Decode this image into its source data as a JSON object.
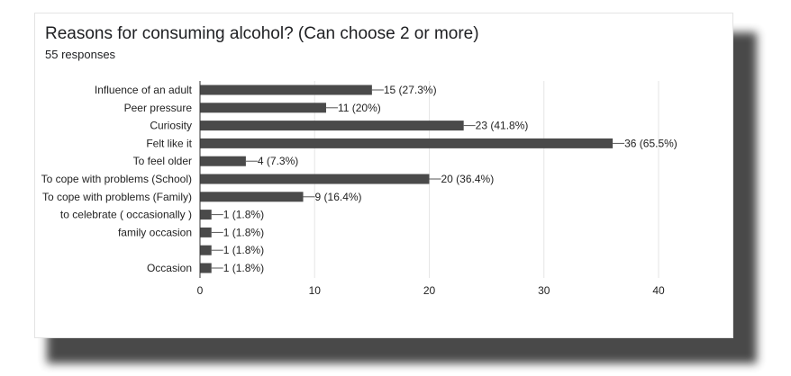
{
  "chart_data": {
    "type": "bar",
    "orientation": "horizontal",
    "title": "Reasons for consuming alcohol? (Can choose 2 or more)",
    "subtitle": "55 responses",
    "categories": [
      "Influence of an adult",
      "Peer pressure",
      "Curiosity",
      "Felt like it",
      "To feel older",
      "To cope with problems (School)",
      "To cope with problems (Family)",
      "to celebrate ( occasionally )",
      "family occasion",
      "",
      "Occasion"
    ],
    "values": [
      15,
      11,
      23,
      36,
      4,
      20,
      9,
      1,
      1,
      1,
      1
    ],
    "data_labels": [
      "15 (27.3%)",
      "11 (20%)",
      "23 (41.8%)",
      "36 (65.5%)",
      "4 (7.3%)",
      "20 (36.4%)",
      "9 (16.4%)",
      "1 (1.8%)",
      "1 (1.8%)",
      "1 (1.8%)",
      "1 (1.8%)"
    ],
    "xlim": [
      0,
      40
    ],
    "xticks": [
      0,
      10,
      20,
      30,
      40
    ],
    "grid": true,
    "bar_color": "#4a4a4a",
    "grid_color": "#e6e6e6"
  }
}
